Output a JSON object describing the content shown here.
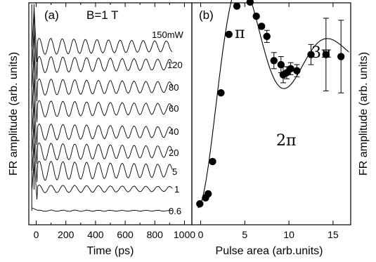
{
  "chart_data": [
    {
      "type": "line",
      "panel_label": "(a)",
      "annotation": "B=1 T",
      "xlabel": "Time (ps)",
      "ylabel": "FR amplitude (arb. units)",
      "xlim": [
        -50,
        1050
      ],
      "x_ticks": [
        "0",
        "200",
        "400",
        "600",
        "800",
        "1000"
      ],
      "x_minor_ticks": true,
      "grid": false,
      "series": [
        {
          "name": "150mW",
          "amplitude": 0.42,
          "period_ps": 78,
          "decay_ps": 2000,
          "t_end": 920
        },
        {
          "name": "120",
          "amplitude": 0.42,
          "period_ps": 80,
          "decay_ps": 2000,
          "t_end": 920
        },
        {
          "name": "80",
          "amplitude": 0.42,
          "period_ps": 80,
          "decay_ps": 2000,
          "t_end": 920
        },
        {
          "name": "60",
          "amplitude": 0.42,
          "period_ps": 80,
          "decay_ps": 2000,
          "t_end": 920
        },
        {
          "name": "40",
          "amplitude": 0.42,
          "period_ps": 80,
          "decay_ps": 2000,
          "t_end": 920
        },
        {
          "name": "20",
          "amplitude": 0.45,
          "period_ps": 80,
          "decay_ps": 2000,
          "t_end": 920
        },
        {
          "name": "5",
          "amplitude": 0.5,
          "period_ps": 80,
          "decay_ps": 2000,
          "t_end": 920
        },
        {
          "name": "1",
          "amplitude": 0.2,
          "period_ps": 80,
          "decay_ps": 2000,
          "t_end": 920
        },
        {
          "name": "0.6",
          "amplitude": 0.03,
          "period_ps": 80,
          "decay_ps": 2000,
          "t_end": 920
        }
      ]
    },
    {
      "type": "scatter",
      "panel_label": "(b)",
      "xlabel": "Pulse area (arb.units)",
      "ylabel": "FR amplitude (arb. units)",
      "xlim": [
        -1,
        17
      ],
      "ylim": [
        0,
        1.1
      ],
      "x_ticks": [
        "0",
        "5",
        "10",
        "15"
      ],
      "annotations": [
        "π",
        "2π",
        "3π"
      ],
      "grid": false,
      "points": [
        {
          "x": -0.1,
          "y": 0.02
        },
        {
          "x": 0.55,
          "y": 0.05
        },
        {
          "x": 0.85,
          "y": 0.07
        },
        {
          "x": 1.35,
          "y": 0.23
        },
        {
          "x": 2.3,
          "y": 0.57
        },
        {
          "x": 3.2,
          "y": 0.86
        },
        {
          "x": 4.1,
          "y": 1.0
        },
        {
          "x": 4.7,
          "y": 1.05
        },
        {
          "x": 5.6,
          "y": 1.02
        },
        {
          "x": 6.3,
          "y": 0.95
        },
        {
          "x": 6.9,
          "y": 0.9
        },
        {
          "x": 7.5,
          "y": 0.85,
          "err": 0.03
        },
        {
          "x": 8.3,
          "y": 0.73,
          "err": 0.04
        },
        {
          "x": 9.1,
          "y": 0.71,
          "err": 0.04
        },
        {
          "x": 9.35,
          "y": 0.66,
          "err": 0.04
        },
        {
          "x": 9.75,
          "y": 0.67,
          "err": 0.03
        },
        {
          "x": 10.2,
          "y": 0.69,
          "err": 0.03
        },
        {
          "x": 10.9,
          "y": 0.68,
          "err": 0.03
        },
        {
          "x": 12.5,
          "y": 0.76,
          "err": 0.05
        },
        {
          "x": 14.2,
          "y": 0.76,
          "err": 0.18
        },
        {
          "x": 15.9,
          "y": 0.75,
          "err": 0.18
        }
      ],
      "fit_curve": "damped Rabi oscillation"
    }
  ]
}
